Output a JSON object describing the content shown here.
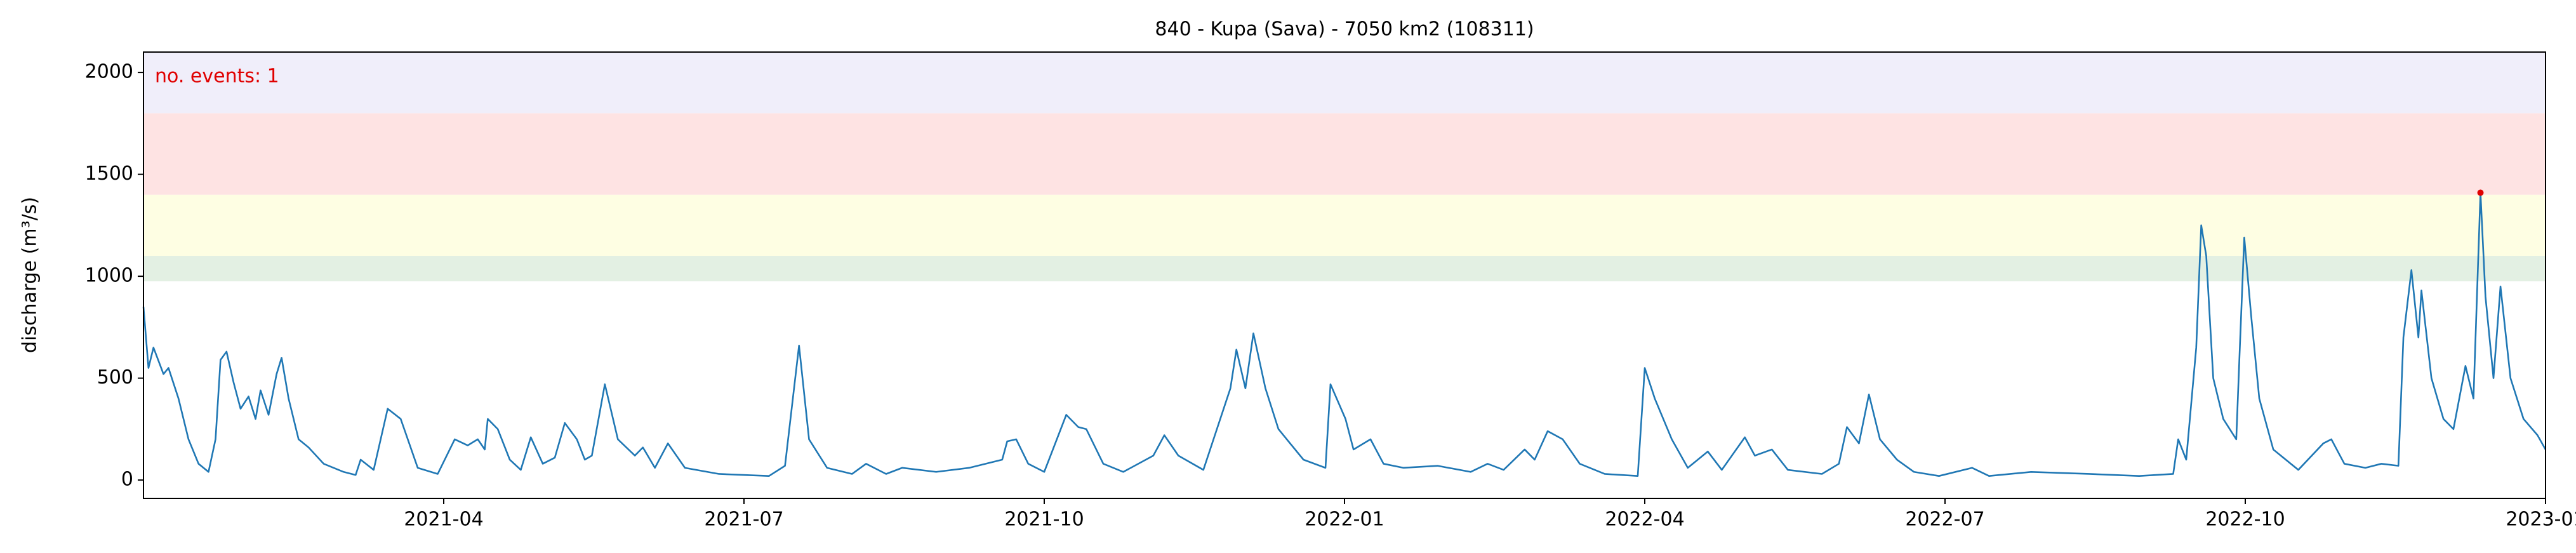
{
  "chart_data": {
    "type": "line",
    "title": "840 - Kupa (Sava) - 7050 km2 (108311)",
    "ylabel": "discharge (m³/s)",
    "annotation": "no. events: 1",
    "annotation_color": "#e00000",
    "xlim": [
      0,
      24
    ],
    "ylim": [
      -90,
      2100
    ],
    "xticks": [
      {
        "value": 3,
        "label": "2021-04"
      },
      {
        "value": 6,
        "label": "2021-07"
      },
      {
        "value": 9,
        "label": "2021-10"
      },
      {
        "value": 12,
        "label": "2022-01"
      },
      {
        "value": 15,
        "label": "2022-04"
      },
      {
        "value": 18,
        "label": "2022-07"
      },
      {
        "value": 21,
        "label": "2022-10"
      },
      {
        "value": 24,
        "label": "2023-01"
      }
    ],
    "yticks": [
      0,
      500,
      1000,
      1500,
      2000
    ],
    "bands": [
      {
        "from": 975,
        "to": 1100,
        "color": "#e3f0e3"
      },
      {
        "from": 1100,
        "to": 1400,
        "color": "#fefee3"
      },
      {
        "from": 1400,
        "to": 1800,
        "color": "#fee3e3"
      },
      {
        "from": 1800,
        "to": 2100,
        "color": "#f0eefa"
      }
    ],
    "series": [
      {
        "color": "#1f77b4",
        "x": [
          0,
          0.05,
          0.1,
          0.2,
          0.25,
          0.35,
          0.45,
          0.55,
          0.65,
          0.72,
          0.77,
          0.83,
          0.9,
          0.97,
          1.05,
          1.12,
          1.17,
          1.25,
          1.33,
          1.38,
          1.45,
          1.55,
          1.65,
          1.8,
          2.0,
          2.12,
          2.17,
          2.3,
          2.44,
          2.57,
          2.74,
          2.94,
          3.11,
          3.24,
          3.34,
          3.41,
          3.44,
          3.54,
          3.66,
          3.77,
          3.87,
          3.99,
          4.11,
          4.21,
          4.33,
          4.41,
          4.48,
          4.61,
          4.74,
          4.91,
          4.99,
          5.11,
          5.24,
          5.41,
          5.75,
          6.25,
          6.41,
          6.55,
          6.65,
          6.83,
          7.08,
          7.22,
          7.42,
          7.58,
          7.92,
          8.25,
          8.58,
          8.63,
          8.72,
          8.84,
          9.0,
          9.22,
          9.34,
          9.42,
          9.59,
          9.79,
          10.09,
          10.2,
          10.34,
          10.59,
          10.86,
          10.92,
          11.01,
          11.09,
          11.21,
          11.34,
          11.59,
          11.81,
          11.86,
          12.01,
          12.09,
          12.26,
          12.39,
          12.59,
          12.93,
          13.26,
          13.43,
          13.59,
          13.8,
          13.9,
          14.03,
          14.18,
          14.35,
          14.6,
          14.93,
          15.0,
          15.1,
          15.27,
          15.43,
          15.63,
          15.77,
          16.0,
          16.1,
          16.27,
          16.43,
          16.77,
          16.94,
          17.02,
          17.14,
          17.24,
          17.35,
          17.52,
          17.69,
          17.94,
          18.27,
          18.44,
          18.86,
          19.44,
          19.94,
          20.28,
          20.33,
          20.41,
          20.51,
          20.56,
          20.61,
          20.68,
          20.78,
          20.91,
          20.94,
          20.99,
          21.06,
          21.14,
          21.28,
          21.53,
          21.78,
          21.86,
          21.99,
          22.2,
          22.36,
          22.53,
          22.58,
          22.66,
          22.73,
          22.76,
          22.86,
          22.98,
          23.08,
          23.2,
          23.28,
          23.35,
          23.4,
          23.48,
          23.55,
          23.65,
          23.78,
          23.92,
          24.0
        ],
        "values": [
          850,
          550,
          650,
          520,
          550,
          400,
          200,
          80,
          40,
          200,
          590,
          630,
          480,
          350,
          410,
          300,
          440,
          320,
          520,
          600,
          400,
          200,
          160,
          80,
          40,
          25,
          100,
          50,
          350,
          300,
          60,
          30,
          200,
          170,
          200,
          150,
          300,
          250,
          100,
          50,
          210,
          80,
          110,
          280,
          200,
          100,
          120,
          470,
          200,
          120,
          160,
          60,
          180,
          60,
          30,
          20,
          70,
          660,
          200,
          60,
          30,
          80,
          30,
          60,
          40,
          60,
          100,
          190,
          200,
          80,
          40,
          320,
          260,
          250,
          80,
          40,
          120,
          220,
          120,
          50,
          450,
          640,
          450,
          720,
          450,
          250,
          100,
          60,
          470,
          300,
          150,
          200,
          80,
          60,
          70,
          40,
          80,
          50,
          150,
          100,
          240,
          200,
          80,
          30,
          20,
          550,
          400,
          200,
          60,
          140,
          50,
          210,
          120,
          150,
          50,
          30,
          80,
          260,
          180,
          420,
          200,
          100,
          40,
          20,
          60,
          20,
          40,
          30,
          20,
          30,
          200,
          100,
          650,
          1250,
          1100,
          500,
          300,
          200,
          580,
          1190,
          800,
          400,
          150,
          50,
          180,
          200,
          80,
          60,
          80,
          70,
          700,
          1030,
          700,
          930,
          500,
          300,
          250,
          560,
          400,
          1410,
          900,
          500,
          950,
          500,
          300,
          220,
          150
        ]
      }
    ],
    "events": {
      "x": [
        23.35
      ],
      "values": [
        1410
      ],
      "color": "#e00000"
    }
  }
}
